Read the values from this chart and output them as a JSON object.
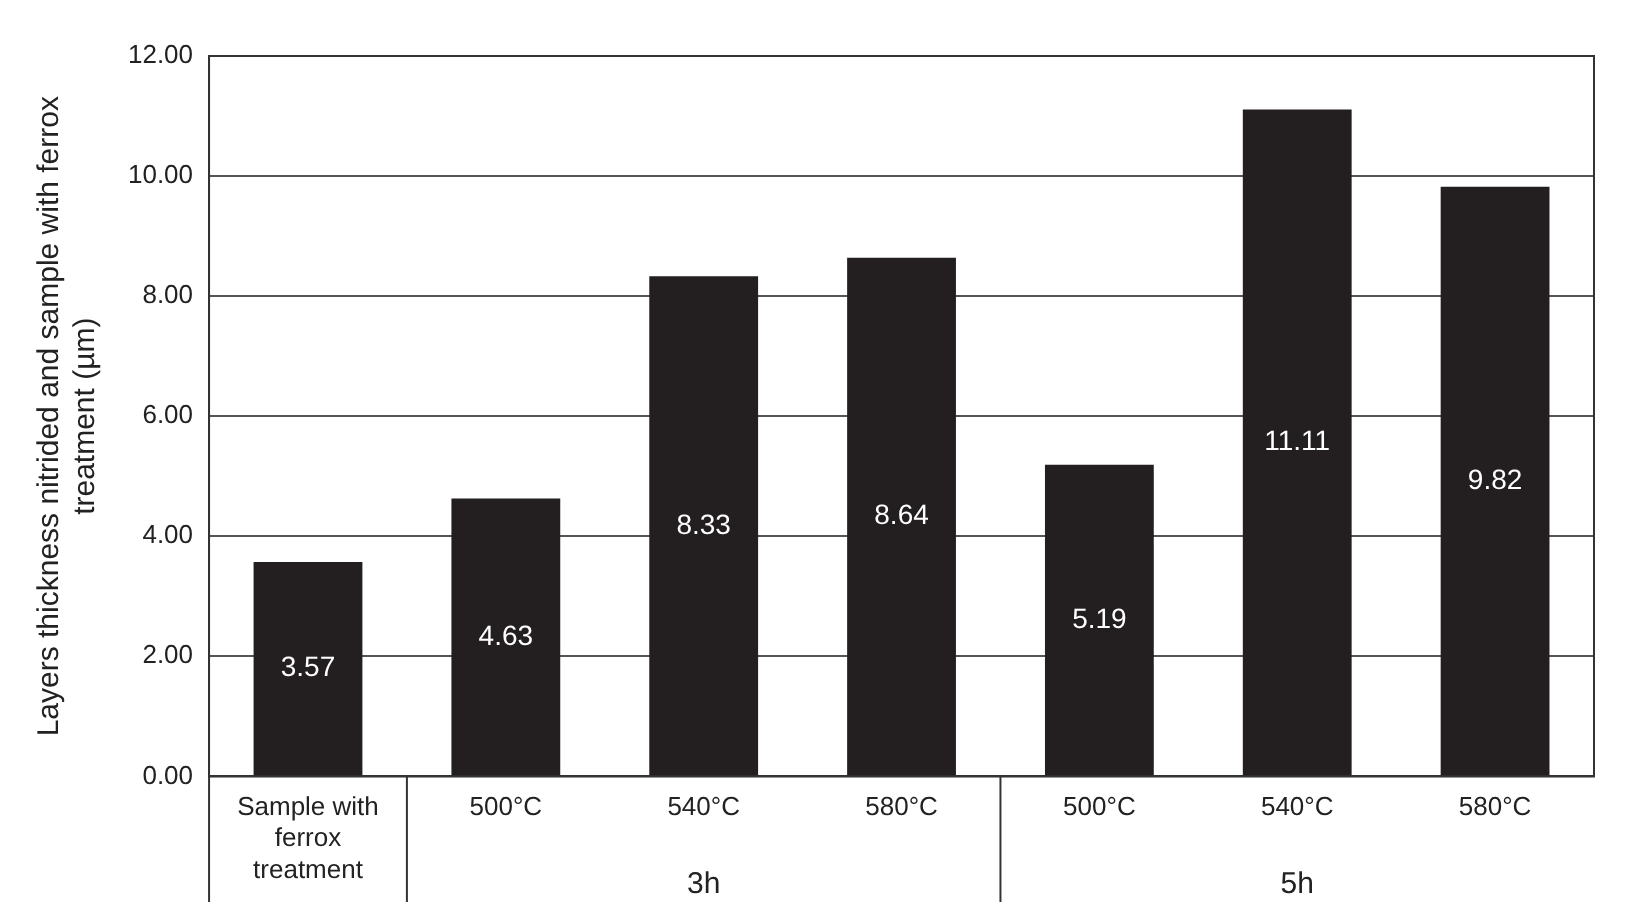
{
  "chart_data": {
    "type": "bar",
    "ylabel": "Layers thickness nitrided and sample with ferrox treatment (µm)",
    "categories": [
      "Sample with ferrox treatment",
      "500°C",
      "540°C",
      "580°C",
      "500°C",
      "540°C",
      "580°C"
    ],
    "values": [
      3.57,
      4.63,
      8.33,
      8.64,
      5.19,
      11.11,
      9.82
    ],
    "color": "#231f20",
    "data_labels": true,
    "ylim": [
      0,
      12
    ],
    "yticks": [
      {
        "value": 0,
        "label": "0.00"
      },
      {
        "value": 2,
        "label": "2.00"
      },
      {
        "value": 4,
        "label": "4.00"
      },
      {
        "value": 6,
        "label": "6.00"
      },
      {
        "value": 8,
        "label": "8.00"
      },
      {
        "value": 10,
        "label": "10.00"
      },
      {
        "value": 12,
        "label": "12.00"
      }
    ],
    "grid": "y",
    "annotations": [
      "3h",
      "5h"
    ]
  }
}
